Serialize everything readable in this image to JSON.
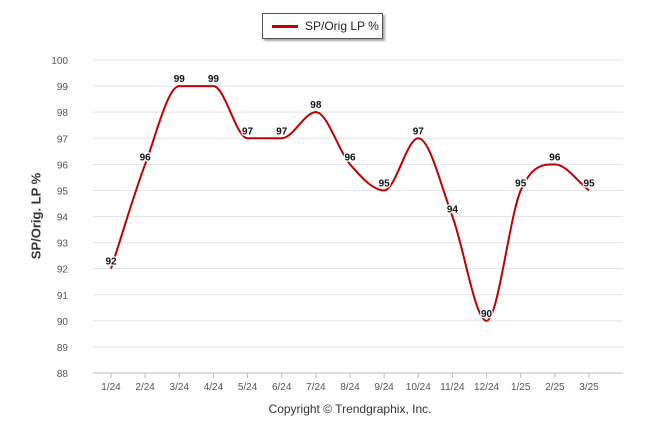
{
  "legend": {
    "label": "SP/Orig LP %"
  },
  "colors": {
    "series": "#c00000",
    "grid": "#e3e3e3",
    "axis_text": "#555555"
  },
  "footer": {
    "copyright": "Copyright © Trendgraphix, Inc."
  },
  "chart_data": {
    "type": "line",
    "ylabel": "SP/Orig. LP %",
    "xlabel": "",
    "title": "",
    "ylim": [
      88,
      100
    ],
    "yticks": [
      88,
      89,
      90,
      91,
      92,
      93,
      94,
      95,
      96,
      97,
      98,
      99,
      100
    ],
    "grid": true,
    "legend_position": "top-center",
    "categories": [
      "1/24",
      "2/24",
      "3/24",
      "4/24",
      "5/24",
      "6/24",
      "7/24",
      "8/24",
      "9/24",
      "10/24",
      "11/24",
      "12/24",
      "1/25",
      "2/25",
      "3/25"
    ],
    "series": [
      {
        "name": "SP/Orig LP %",
        "values": [
          92,
          96,
          99,
          99,
          97,
          97,
          98,
          96,
          95,
          97,
          94,
          90,
          95,
          96,
          95
        ],
        "labels": [
          "92",
          "96",
          "99",
          "99",
          "97",
          "97",
          "98",
          "96",
          "95",
          "97",
          "94",
          "90",
          "95",
          "96",
          "95"
        ]
      }
    ]
  }
}
